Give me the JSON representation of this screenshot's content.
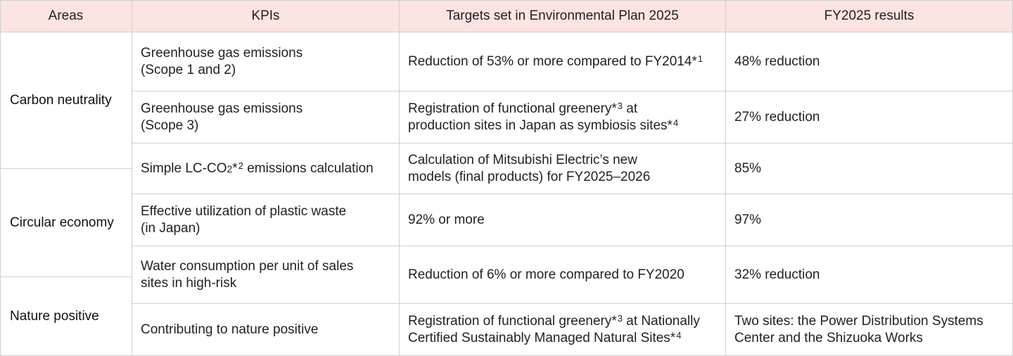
{
  "headers": {
    "areas": "Areas",
    "kpis": "KPIs",
    "targets": "Targets set in Environmental Plan 2025",
    "results": "FY2025 results"
  },
  "areas": {
    "carbon": "Carbon neutrality",
    "circular": "Circular economy",
    "nature": "Nature positive"
  },
  "rows": [
    {
      "kpi_lines": [
        "Greenhouse gas emissions",
        "(Scope 1 and 2)"
      ],
      "target_lines": [
        "Reduction of 53% or more compared to FY2014*"
      ],
      "target_notes": [
        "1"
      ],
      "result_lines": [
        "48% reduction"
      ]
    },
    {
      "kpi_lines": [
        "Greenhouse gas emissions",
        "(Scope 3)"
      ],
      "target_lines": [
        "Registration of functional greenery*",
        " at",
        "production sites in Japan as symbiosis sites*"
      ],
      "target_notes": [
        "3",
        "4"
      ],
      "result_lines": [
        "27% reduction"
      ]
    },
    {
      "kpi_parts": [
        "Simple LC-CO",
        "2",
        "*",
        "2",
        " emissions calculation"
      ],
      "target_lines": [
        "Calculation of Mitsubishi Electric’s new",
        "models (final products) for FY2025–2026"
      ],
      "result_lines": [
        "85%"
      ]
    },
    {
      "kpi_lines": [
        "Effective utilization of plastic waste",
        "(in Japan)"
      ],
      "target_lines": [
        "92% or more"
      ],
      "result_lines": [
        "97%"
      ]
    },
    {
      "kpi_lines": [
        "Water consumption per unit of sales",
        "sites in high-risk"
      ],
      "target_lines": [
        "Reduction of 6% or more compared to FY2020"
      ],
      "result_lines": [
        "32% reduction"
      ]
    },
    {
      "kpi_lines": [
        "Contributing to nature positive"
      ],
      "target_lines": [
        "Registration of functional greenery*",
        " at Nationally",
        "Certified Sustainably Managed Natural Sites*"
      ],
      "target_notes": [
        "3",
        "4"
      ],
      "result_lines": [
        "Two sites: the Power Distribution Systems",
        "Center and the Shizuoka Works"
      ]
    }
  ]
}
